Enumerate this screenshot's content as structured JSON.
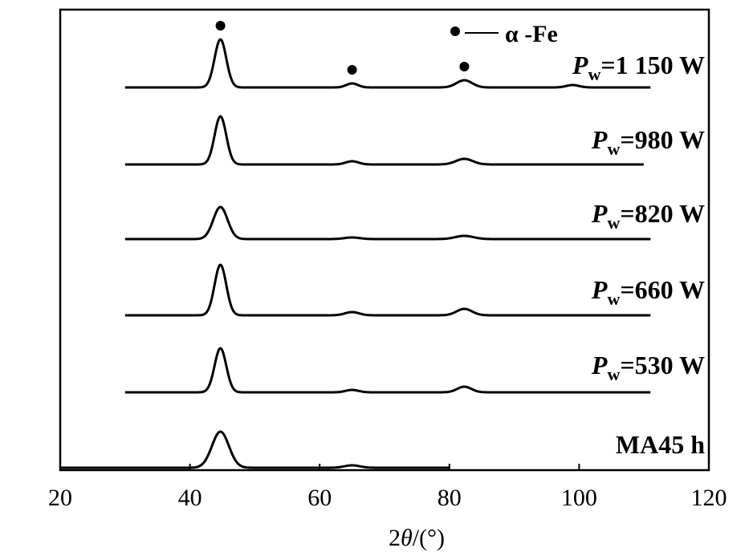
{
  "chart_data": {
    "type": "line",
    "xlabel_prefix": "2",
    "xlabel_symbol": "θ",
    "xlabel_suffix": "/(°)",
    "ylabel": "",
    "xlim": [
      20,
      120
    ],
    "xticks": [
      20,
      40,
      60,
      80,
      100,
      120
    ],
    "legend": {
      "marker": "●",
      "text": "α -Fe"
    },
    "peaks_marked": [
      {
        "series": "Pw=1 150 W",
        "x": 44.7
      },
      {
        "series": "Pw=1 150 W",
        "x": 65.0
      },
      {
        "series": "Pw=1 150 W",
        "x": 82.3
      }
    ],
    "series": [
      {
        "name": "Pw=1 150 W",
        "label_prefix": "P",
        "label_sub": "w",
        "label_rest": "=1 150 W",
        "x_range": [
          30,
          111
        ],
        "baseline": 0.0,
        "peaks": [
          {
            "x": 44.7,
            "h": 60,
            "w": 0.9
          },
          {
            "x": 65.0,
            "h": 5,
            "w": 0.9
          },
          {
            "x": 82.3,
            "h": 9,
            "w": 1.2
          },
          {
            "x": 99.0,
            "h": 3,
            "w": 1.0
          }
        ]
      },
      {
        "name": "Pw=980 W",
        "label_prefix": "P",
        "label_sub": "w",
        "label_rest": "=980 W",
        "x_range": [
          30,
          110
        ],
        "baseline": 0.0,
        "peaks": [
          {
            "x": 44.7,
            "h": 60,
            "w": 0.9
          },
          {
            "x": 65.0,
            "h": 4,
            "w": 1.0
          },
          {
            "x": 82.3,
            "h": 7,
            "w": 1.3
          }
        ]
      },
      {
        "name": "Pw=820 W",
        "label_prefix": "P",
        "label_sub": "w",
        "label_rest": "=820 W",
        "x_range": [
          30,
          111
        ],
        "baseline": 0.0,
        "peaks": [
          {
            "x": 44.7,
            "h": 40,
            "w": 1.1
          },
          {
            "x": 65.0,
            "h": 2,
            "w": 1.2
          },
          {
            "x": 82.3,
            "h": 4,
            "w": 1.4
          }
        ]
      },
      {
        "name": "Pw=660 W",
        "label_prefix": "P",
        "label_sub": "w",
        "label_rest": "=660 W",
        "x_range": [
          30,
          111
        ],
        "baseline": 0.0,
        "peaks": [
          {
            "x": 44.7,
            "h": 63,
            "w": 0.9
          },
          {
            "x": 65.0,
            "h": 4,
            "w": 1.1
          },
          {
            "x": 82.3,
            "h": 8,
            "w": 1.2
          }
        ]
      },
      {
        "name": "Pw=530 W",
        "label_prefix": "P",
        "label_sub": "w",
        "label_rest": "=530 W",
        "x_range": [
          30,
          111
        ],
        "baseline": 0.0,
        "peaks": [
          {
            "x": 44.7,
            "h": 55,
            "w": 0.9
          },
          {
            "x": 65.0,
            "h": 3,
            "w": 1.0
          },
          {
            "x": 82.3,
            "h": 7,
            "w": 1.1
          }
        ]
      },
      {
        "name": "MA45 h",
        "label_prefix": "MA45 h",
        "label_sub": "",
        "label_rest": "",
        "x_range": [
          20,
          80
        ],
        "baseline": 0.0,
        "peaks": [
          {
            "x": 44.7,
            "h": 45,
            "w": 1.3
          },
          {
            "x": 65.0,
            "h": 3,
            "w": 1.2
          }
        ]
      }
    ]
  }
}
